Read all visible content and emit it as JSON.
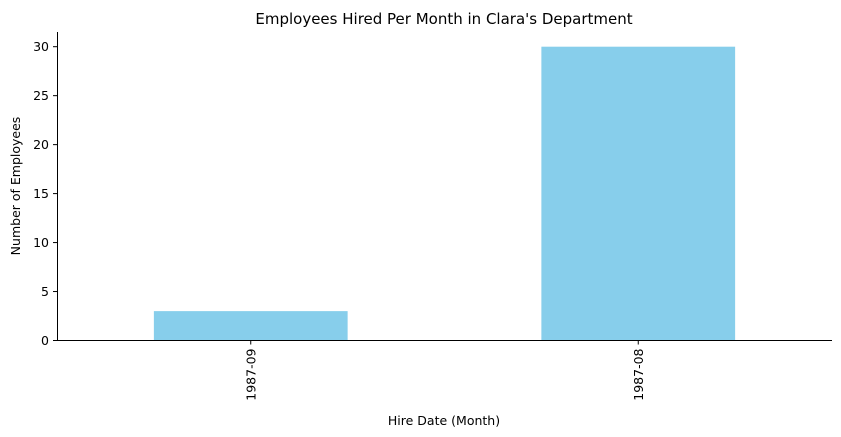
{
  "chart_data": {
    "type": "bar",
    "title": "Employees Hired Per Month in Clara's Department",
    "xlabel": "Hire Date (Month)",
    "ylabel": "Number of Employees",
    "categories": [
      "1987-09",
      "1987-08"
    ],
    "values": [
      3,
      30
    ],
    "ylim": [
      0,
      31.5
    ],
    "yticks": [
      0,
      5,
      10,
      15,
      20,
      25,
      30
    ],
    "bar_color": "#87CEEB",
    "grid": false,
    "legend": "none",
    "x_tick_rotation": "vertical"
  }
}
